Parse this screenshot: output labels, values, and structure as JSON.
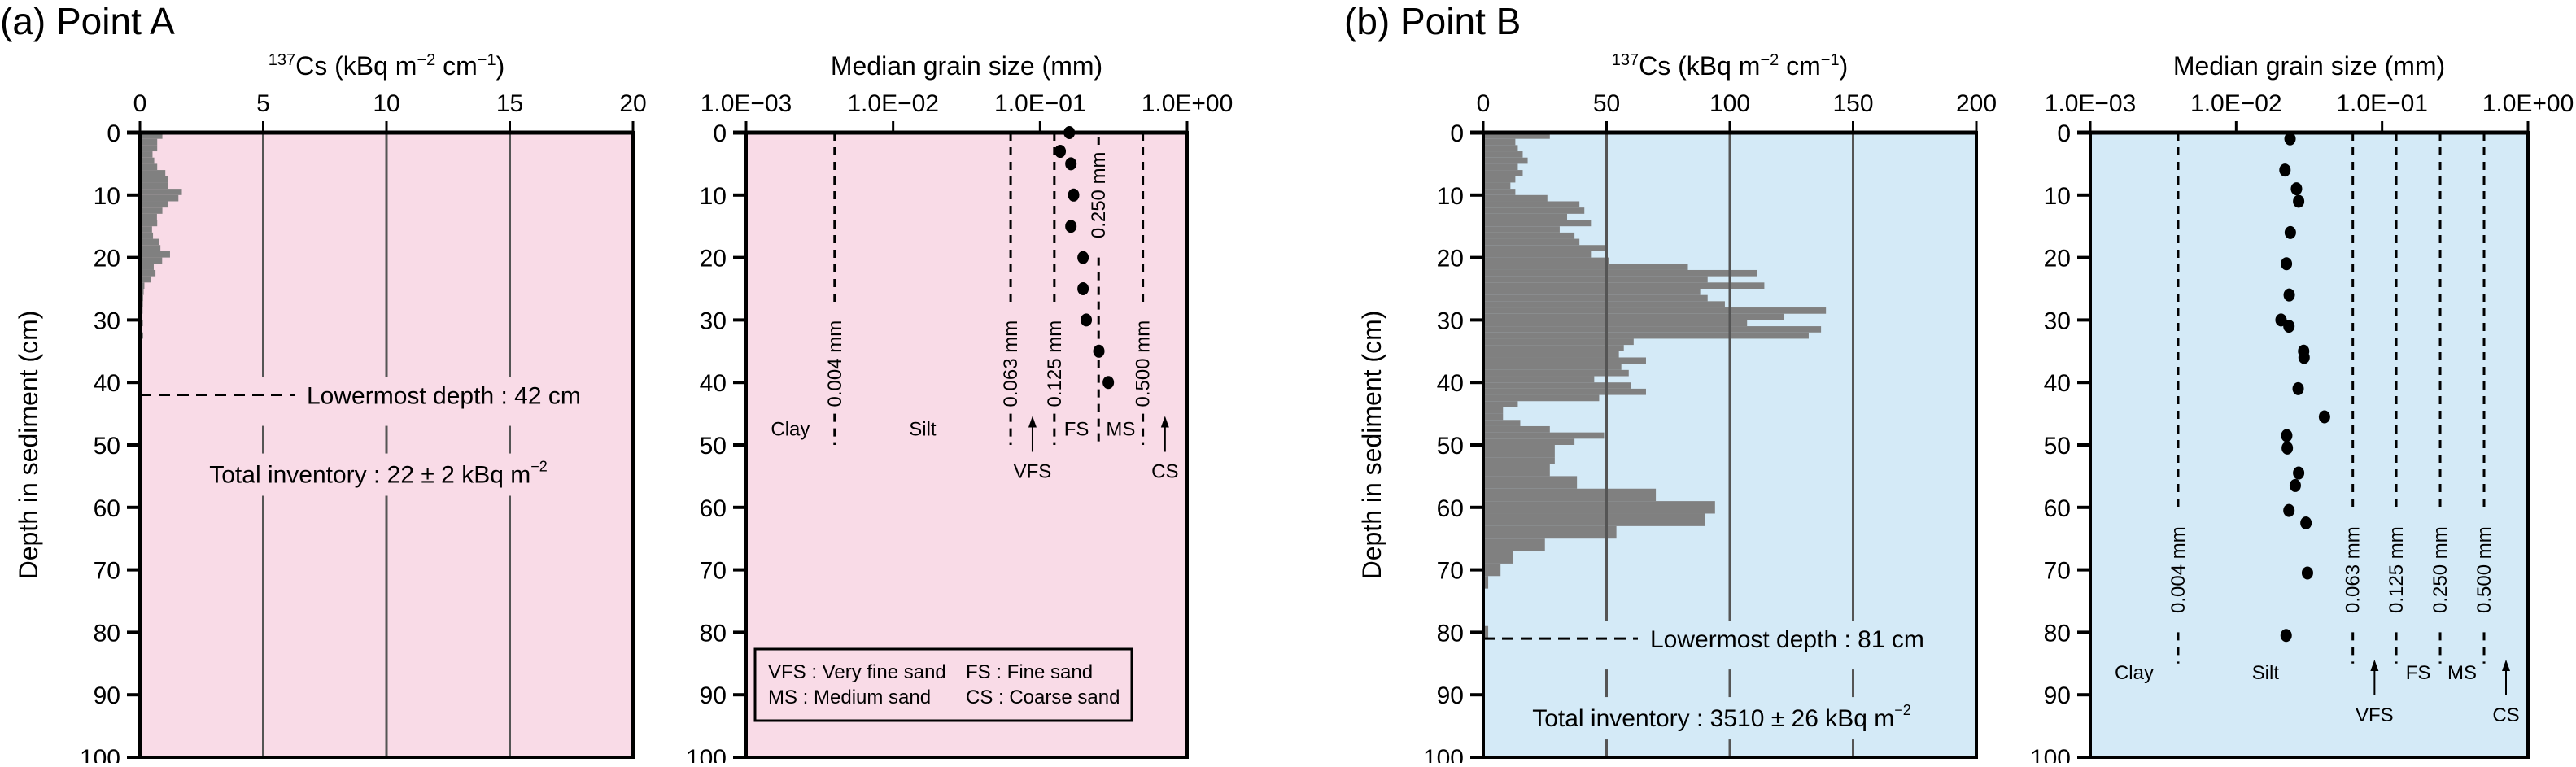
{
  "figure": {
    "panels": [
      {
        "id": "a",
        "title": "(a) Point A",
        "background": "#f9dbe7",
        "cs": {
          "axis_title_sup": "137",
          "axis_title_main": "Cs (kBq m",
          "axis_title_sup2": "−2",
          "axis_title_mid": " cm",
          "axis_title_sup3": "−1",
          "axis_title_end": ")",
          "xticks": [
            "0",
            "5",
            "10",
            "15",
            "20"
          ],
          "xlim": [
            0,
            20
          ],
          "lowermost_label": "Lowermost depth : 42 cm",
          "lowermost_depth": 42,
          "inventory_label": "Total inventory : 22 ± 2 kBq m",
          "inventory_sup": "−2"
        },
        "grain": {
          "axis_title": "Median grain size (mm)",
          "xticks": [
            "1.0E−03",
            "1.0E−02",
            "1.0E−01",
            "1.0E+00"
          ],
          "boundaries": [
            {
              "value": 0.004,
              "label": "0.004 mm"
            },
            {
              "value": 0.063,
              "label": "0.063 mm"
            },
            {
              "value": 0.125,
              "label": "0.125 mm"
            },
            {
              "value": 0.25,
              "label": "0.250 mm"
            },
            {
              "value": 0.5,
              "label": "0.500 mm"
            }
          ],
          "classes": {
            "clay": "Clay",
            "silt": "Silt",
            "vfs": "VFS",
            "fs": "FS",
            "ms": "MS",
            "cs": "CS"
          },
          "legend": [
            [
              "VFS : Very fine sand",
              "FS : Fine sand"
            ],
            [
              "MS : Medium sand",
              "CS : Coarse sand"
            ]
          ]
        }
      },
      {
        "id": "b",
        "title": "(b) Point B",
        "background": "#d4eaf7",
        "cs": {
          "axis_title_sup": "137",
          "axis_title_main": "Cs (kBq m",
          "axis_title_sup2": "−2",
          "axis_title_mid": " cm",
          "axis_title_sup3": "−1",
          "axis_title_end": ")",
          "xticks": [
            "0",
            "50",
            "100",
            "150",
            "200"
          ],
          "xlim": [
            0,
            200
          ],
          "lowermost_label": "Lowermost depth : 81 cm",
          "lowermost_depth": 81,
          "inventory_label": "Total inventory : 3510 ± 26 kBq m",
          "inventory_sup": "−2"
        },
        "grain": {
          "axis_title": "Median grain size (mm)",
          "xticks": [
            "1.0E−03",
            "1.0E−02",
            "1.0E−01",
            "1.0E+00"
          ],
          "boundaries": [
            {
              "value": 0.004,
              "label": "0.004 mm"
            },
            {
              "value": 0.063,
              "label": "0.063 mm"
            },
            {
              "value": 0.125,
              "label": "0.125 mm"
            },
            {
              "value": 0.25,
              "label": "0.250 mm"
            },
            {
              "value": 0.5,
              "label": "0.500 mm"
            }
          ],
          "classes": {
            "clay": "Clay",
            "silt": "Silt",
            "vfs": "VFS",
            "fs": "FS",
            "ms": "MS",
            "cs": "CS"
          }
        }
      }
    ],
    "ylabel": "Depth in sediment (cm)",
    "yticks": [
      "0",
      "10",
      "20",
      "30",
      "40",
      "50",
      "60",
      "70",
      "80",
      "90",
      "100"
    ],
    "bar_color": "#808080",
    "gridline_color": "#555555"
  },
  "chart_data": [
    {
      "type": "bar",
      "orientation": "horizontal",
      "title": "(a) Point A — 137Cs depth profile",
      "xlabel": "137Cs (kBq m−2 cm−1)",
      "ylabel": "Depth in sediment (cm)",
      "xlim": [
        0,
        20
      ],
      "ylim": [
        100,
        0
      ],
      "grid": "vertical at 5,10,15",
      "series": [
        {
          "name": "137Cs",
          "segments": [
            [
              0,
              1,
              0.91
            ],
            [
              1,
              2,
              0.7
            ],
            [
              2,
              3,
              0.7
            ],
            [
              3,
              4,
              0.51
            ],
            [
              4,
              5,
              0.58
            ],
            [
              5,
              6,
              0.7
            ],
            [
              6,
              7,
              1.03
            ],
            [
              7,
              8,
              1.15
            ],
            [
              8,
              9,
              1.15
            ],
            [
              9,
              10,
              1.7
            ],
            [
              10,
              11,
              1.56
            ],
            [
              11,
              12,
              1.13
            ],
            [
              12,
              13,
              0.91
            ],
            [
              13,
              14,
              0.69
            ],
            [
              14,
              15,
              0.7
            ],
            [
              15,
              16,
              0.49
            ],
            [
              16,
              17,
              0.53
            ],
            [
              17,
              18,
              0.79
            ],
            [
              18,
              19,
              0.83
            ],
            [
              19,
              20,
              1.22
            ],
            [
              20,
              21,
              0.9
            ],
            [
              21,
              22,
              0.56
            ],
            [
              22,
              23,
              0.63
            ],
            [
              23,
              24,
              0.45
            ],
            [
              24,
              25,
              0.18
            ],
            [
              25,
              26,
              0.15
            ],
            [
              26,
              27,
              0.13
            ],
            [
              27,
              28,
              0.12
            ],
            [
              28,
              29,
              0.11
            ],
            [
              29,
              30,
              0.1
            ],
            [
              30,
              31,
              0.12
            ],
            [
              31,
              32,
              0.08
            ],
            [
              32,
              33,
              0.13
            ]
          ]
        }
      ],
      "annotations": [
        "Lowermost depth : 42 cm",
        "Total inventory : 22 ± 2 kBq m−2"
      ]
    },
    {
      "type": "scatter",
      "title": "(a) Point A — Median grain size",
      "xlabel": "Median grain size (mm)",
      "ylabel": "Depth in sediment (cm)",
      "xscale": "log",
      "xlim": [
        0.001,
        1
      ],
      "ylim": [
        100,
        0
      ],
      "series": [
        {
          "name": "Median grain size",
          "points": [
            [
              0.158,
              0
            ],
            [
              0.137,
              3
            ],
            [
              0.162,
              5
            ],
            [
              0.169,
              10
            ],
            [
              0.162,
              15
            ],
            [
              0.196,
              20
            ],
            [
              0.196,
              25
            ],
            [
              0.206,
              30
            ],
            [
              0.251,
              35
            ],
            [
              0.291,
              40
            ]
          ]
        }
      ],
      "reference_lines": [
        0.004,
        0.063,
        0.125,
        0.25,
        0.5
      ],
      "annotations": [
        "Clay",
        "Silt",
        "VFS",
        "FS",
        "MS",
        "CS",
        "VFS : Very fine sand",
        "FS : Fine sand",
        "MS : Medium sand",
        "CS : Coarse sand"
      ]
    },
    {
      "type": "bar",
      "orientation": "horizontal",
      "title": "(b) Point B — 137Cs depth profile",
      "xlabel": "137Cs (kBq m−2 cm−1)",
      "ylabel": "Depth in sediment (cm)",
      "xlim": [
        0,
        200
      ],
      "ylim": [
        100,
        0
      ],
      "grid": "vertical at 50,100,150",
      "series": [
        {
          "name": "137Cs",
          "segments": [
            [
              0,
              1,
              27
            ],
            [
              1,
              2,
              13
            ],
            [
              2,
              3,
              14
            ],
            [
              3,
              4,
              16
            ],
            [
              4,
              5,
              18
            ],
            [
              5,
              6,
              14
            ],
            [
              6,
              7,
              16
            ],
            [
              7,
              8,
              13
            ],
            [
              8,
              9,
              11
            ],
            [
              9,
              10,
              13
            ],
            [
              10,
              11,
              26
            ],
            [
              11,
              12,
              39
            ],
            [
              12,
              13,
              41
            ],
            [
              13,
              14,
              34
            ],
            [
              14,
              15,
              44
            ],
            [
              15,
              16,
              31
            ],
            [
              16,
              17,
              37
            ],
            [
              17,
              18,
              39
            ],
            [
              18,
              19,
              50
            ],
            [
              19,
              20,
              44
            ],
            [
              20,
              21,
              51
            ],
            [
              21,
              22,
              83
            ],
            [
              22,
              23,
              111
            ],
            [
              23,
              24,
              91
            ],
            [
              24,
              25,
              114
            ],
            [
              25,
              26,
              88
            ],
            [
              26,
              27,
              91
            ],
            [
              27,
              28,
              98
            ],
            [
              28,
              29,
              139
            ],
            [
              29,
              30,
              122
            ],
            [
              30,
              31,
              107
            ],
            [
              31,
              32,
              137
            ],
            [
              32,
              33,
              132
            ],
            [
              33,
              34,
              61
            ],
            [
              34,
              35,
              57
            ],
            [
              35,
              36,
              55
            ],
            [
              36,
              37,
              66
            ],
            [
              37,
              38,
              56
            ],
            [
              38,
              39,
              59
            ],
            [
              39,
              40,
              45
            ],
            [
              40,
              41,
              60
            ],
            [
              41,
              42,
              66
            ],
            [
              42,
              43,
              47
            ],
            [
              43,
              44,
              14
            ],
            [
              44,
              45,
              8
            ],
            [
              45,
              46,
              8
            ],
            [
              46,
              47,
              15
            ],
            [
              47,
              48,
              27
            ],
            [
              48,
              49,
              49
            ],
            [
              49,
              50,
              37
            ],
            [
              50,
              51,
              29
            ],
            [
              51,
              52,
              29
            ],
            [
              52,
              53,
              29
            ],
            [
              53,
              55,
              27
            ],
            [
              55,
              57,
              38
            ],
            [
              57,
              59,
              70
            ],
            [
              59,
              61,
              94
            ],
            [
              61,
              63,
              90
            ],
            [
              63,
              65,
              54
            ],
            [
              65,
              67,
              25
            ],
            [
              67,
              69,
              12
            ],
            [
              69,
              71,
              7
            ],
            [
              71,
              73,
              2
            ],
            [
              79,
              81,
              2
            ]
          ]
        }
      ],
      "annotations": [
        "Lowermost depth : 81 cm",
        "Total inventory : 3510 ± 26 kBq m−2"
      ]
    },
    {
      "type": "scatter",
      "title": "(b) Point B — Median grain size",
      "xlabel": "Median grain size (mm)",
      "ylabel": "Depth in sediment (cm)",
      "xscale": "log",
      "xlim": [
        0.001,
        1
      ],
      "ylim": [
        100,
        0
      ],
      "series": [
        {
          "name": "Median grain size",
          "points": [
            [
              0.0234,
              1
            ],
            [
              0.0216,
              6
            ],
            [
              0.0259,
              9
            ],
            [
              0.0268,
              11
            ],
            [
              0.0235,
              16
            ],
            [
              0.0221,
              21
            ],
            [
              0.0231,
              26
            ],
            [
              0.0203,
              30
            ],
            [
              0.023,
              31
            ],
            [
              0.029,
              35
            ],
            [
              0.0292,
              36
            ],
            [
              0.0266,
              41
            ],
            [
              0.0403,
              45.5
            ],
            [
              0.0222,
              48.5
            ],
            [
              0.0224,
              50.5
            ],
            [
              0.0268,
              54.5
            ],
            [
              0.0254,
              56.5
            ],
            [
              0.023,
              60.5
            ],
            [
              0.0301,
              62.5
            ],
            [
              0.0308,
              70.5
            ],
            [
              0.022,
              80.5
            ]
          ]
        }
      ],
      "reference_lines": [
        0.004,
        0.063,
        0.125,
        0.25,
        0.5
      ],
      "annotations": [
        "Clay",
        "Silt",
        "VFS",
        "FS",
        "MS",
        "CS"
      ]
    }
  ]
}
